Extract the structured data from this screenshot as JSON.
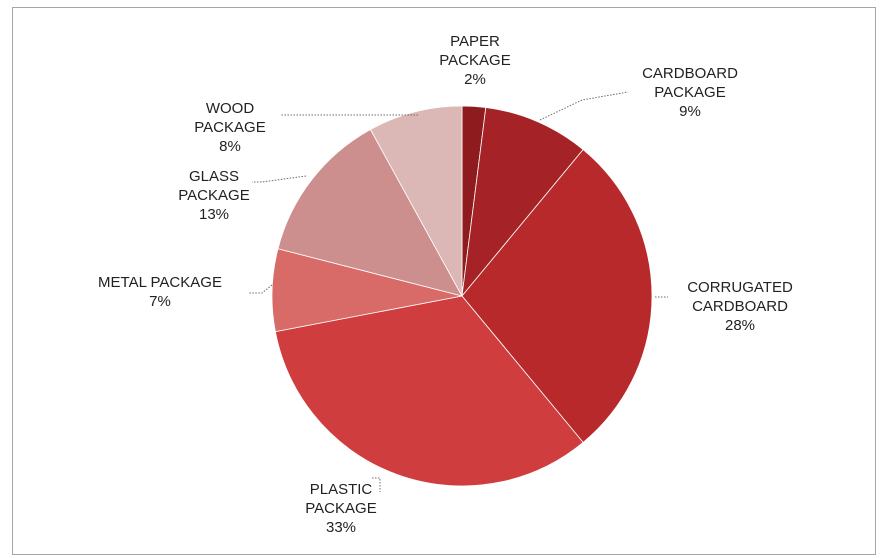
{
  "chart_data": {
    "type": "pie",
    "title": "",
    "start_angle_deg": 0,
    "direction": "clockwise",
    "slices": [
      {
        "label_lines": [
          "PAPER",
          "PACKAGE"
        ],
        "percent_text": "2%",
        "value": 2,
        "color": "#8e1c1e"
      },
      {
        "label_lines": [
          "CARDBOARD",
          "PACKAGE"
        ],
        "percent_text": "9%",
        "value": 9,
        "color": "#a52326"
      },
      {
        "label_lines": [
          "CORRUGATED",
          "CARDBOARD"
        ],
        "percent_text": "28%",
        "value": 28,
        "color": "#b8292b"
      },
      {
        "label_lines": [
          "PLASTIC",
          "PACKAGE"
        ],
        "percent_text": "33%",
        "value": 33,
        "color": "#cf3d3e"
      },
      {
        "label_lines": [
          "METAL PACKAGE"
        ],
        "percent_text": "7%",
        "value": 7,
        "color": "#d86a68"
      },
      {
        "label_lines": [
          "GLASS",
          "PACKAGE"
        ],
        "percent_text": "13%",
        "value": 13,
        "color": "#cd8f8d"
      },
      {
        "label_lines": [
          "WOOD",
          "PACKAGE"
        ],
        "percent_text": "8%",
        "value": 8,
        "color": "#dbb7b5"
      }
    ]
  }
}
